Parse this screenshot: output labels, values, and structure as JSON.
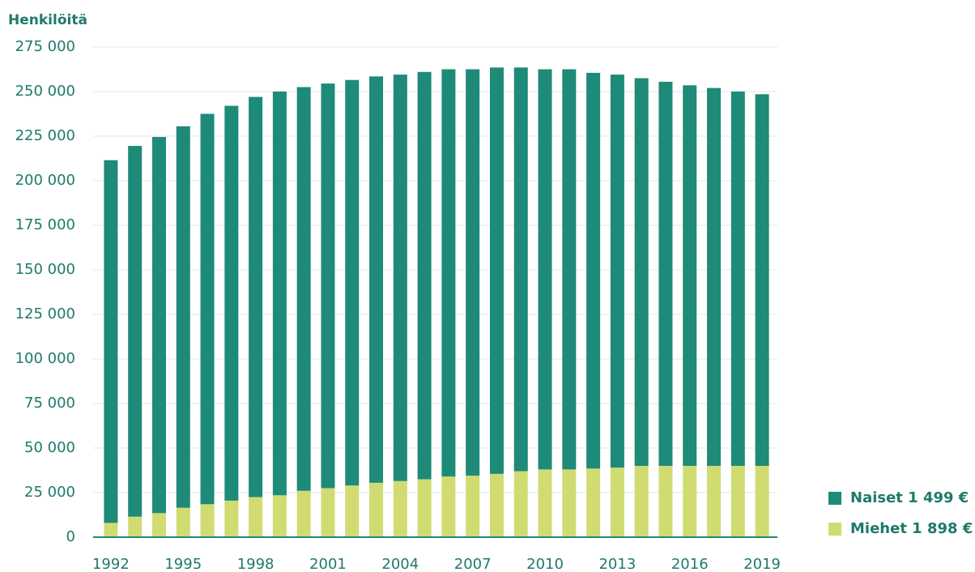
{
  "chart_data": {
    "type": "stacked_bar",
    "y_axis_label": "Henkilöitä",
    "categories": [
      "1992",
      null,
      null,
      "1995",
      null,
      null,
      "1998",
      null,
      null,
      "2001",
      null,
      null,
      "2004",
      null,
      null,
      "2007",
      null,
      null,
      "2010",
      null,
      null,
      "2013",
      null,
      null,
      "2016",
      null,
      null,
      "2019"
    ],
    "series": [
      {
        "name": "Miehet 1 898 €",
        "color": "#d0dc72",
        "values": [
          8000,
          11500,
          13500,
          16500,
          18500,
          20500,
          22500,
          23500,
          26000,
          27500,
          29000,
          30500,
          31500,
          32500,
          34000,
          34500,
          35500,
          37000,
          38000,
          38000,
          38500,
          39000,
          40000,
          40000,
          40000,
          40000,
          40000,
          40000
        ]
      },
      {
        "name": "Naiset 1 499 €",
        "color": "#1e8a78",
        "values": [
          203500,
          208000,
          211000,
          214000,
          219000,
          221500,
          224500,
          226500,
          226500,
          227000,
          227500,
          228000,
          228000,
          228500,
          228500,
          228000,
          228000,
          226500,
          224500,
          224500,
          222000,
          220500,
          217500,
          215500,
          213500,
          212000,
          210000,
          208500
        ]
      }
    ],
    "ylim": [
      0,
      275000
    ],
    "yticks": [
      0,
      {
        "value": 25000,
        "label": "25 000"
      },
      {
        "value": 50000,
        "label": "50 000"
      },
      {
        "value": 75000,
        "label": "75 000"
      },
      {
        "value": 100000,
        "label": "100 000"
      },
      {
        "value": 125000,
        "label": "125 000"
      },
      {
        "value": 150000,
        "label": "150 000"
      },
      {
        "value": 175000,
        "label": "175 000"
      },
      {
        "value": 200000,
        "label": "200 000"
      },
      {
        "value": 225000,
        "label": "225 000"
      },
      {
        "value": 250000,
        "label": "250 000"
      },
      {
        "value": 275000,
        "label": "275 000"
      }
    ],
    "grid": true,
    "legend": "right"
  }
}
